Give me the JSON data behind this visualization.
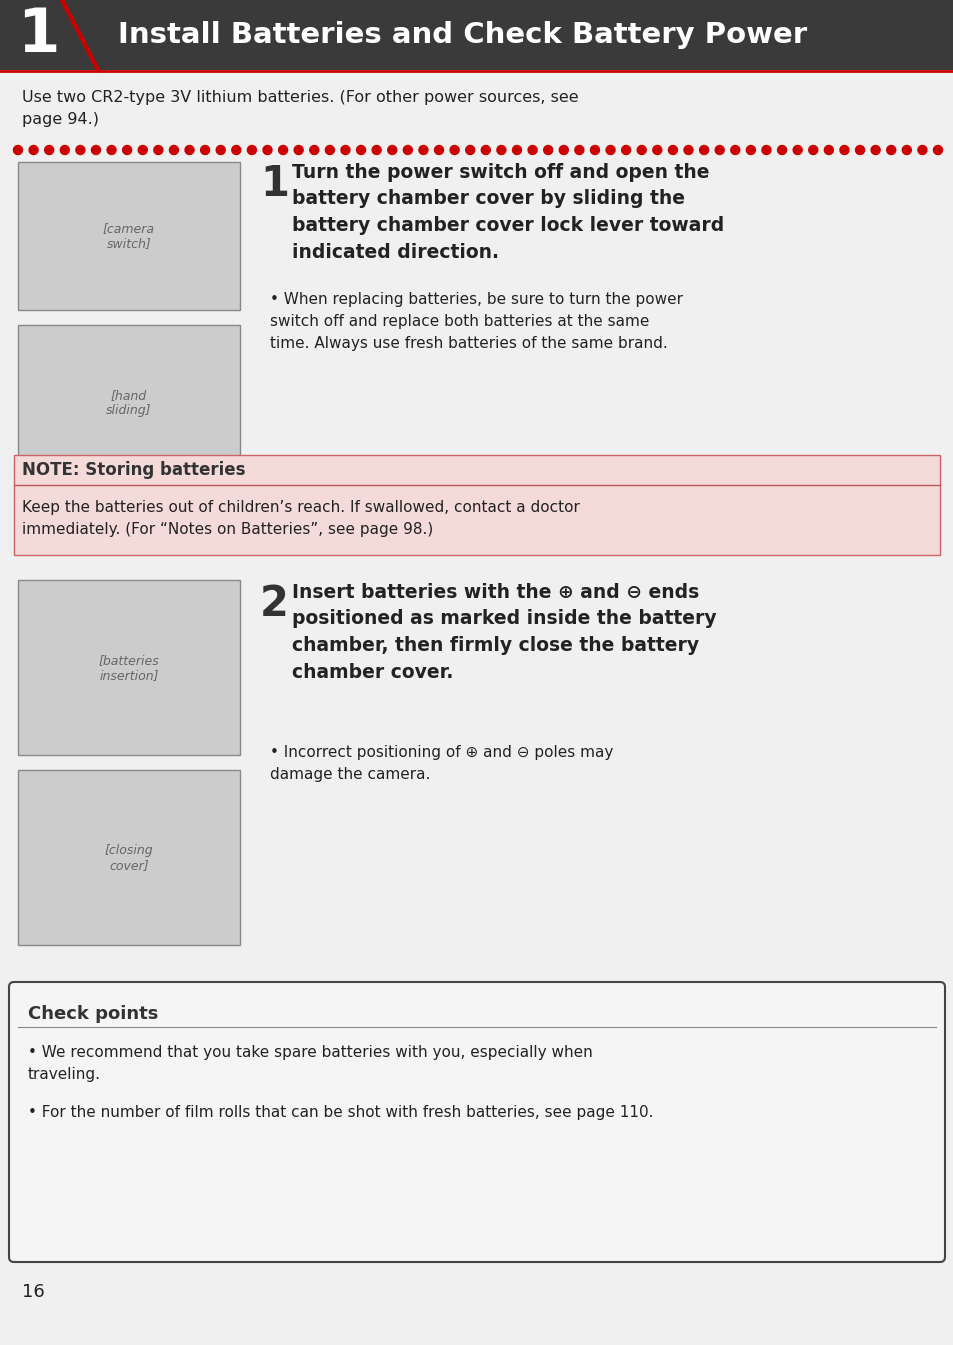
{
  "bg_color": "#e8e8e8",
  "header_bg": "#3a3a3a",
  "page_bg": "#f0f0f0",
  "title": "Install Batteries and Check Battery Power",
  "title_color": "#ffffff",
  "title_number": "1",
  "red_color": "#cc0000",
  "intro_text": "Use two CR2-type 3V lithium batteries. (For other power sources, see\npage 94.)",
  "step1_number": "1",
  "step1_text": "Turn the power switch off and open the\nbattery chamber cover by sliding the\nbattery chamber cover lock lever toward\nindicated direction.",
  "step1_bullet": "When replacing batteries, be sure to turn the power\nswitch off and replace both batteries at the same\ntime. Always use fresh batteries of the same brand.",
  "note_bg": "#f5d5d5",
  "note_title": "NOTE: Storing batteries",
  "note_text": "Keep the batteries out of children’s reach. If swallowed, contact a doctor\nimmediately. (For “Notes on Batteries”, see page 98.)",
  "step2_number": "2",
  "step2_text": "Insert batteries with the ⊕ and ⊖ ends\npositioned as marked inside the battery\nchamber, then firmly close the battery\nchamber cover.",
  "step2_bullet": "Incorrect positioning of ⊕ and ⊖ poles may\ndamage the camera.",
  "checkpoints_title": "Check points",
  "checkpoints_bullet1": "We recommend that you take spare batteries with you, especially when\ntraveling.",
  "checkpoints_bullet2": "For the number of film rolls that can be shot with fresh batteries, see page 110.",
  "page_number": "16",
  "text_color": "#222222",
  "dark_gray": "#333333"
}
